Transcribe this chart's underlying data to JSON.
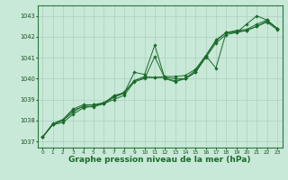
{
  "background_color": "#c8e8d8",
  "plot_bg_color": "#c8e8d8",
  "grid_color": "#a8c8b8",
  "line_color": "#1a6b2a",
  "marker_color": "#1a6b2a",
  "xlabel": "Graphe pression niveau de la mer (hPa)",
  "xlabel_fontsize": 6.5,
  "xlim": [
    -0.5,
    23.5
  ],
  "ylim": [
    1036.7,
    1043.5
  ],
  "yticks": [
    1037,
    1038,
    1039,
    1040,
    1041,
    1042,
    1043
  ],
  "xticks": [
    0,
    1,
    2,
    3,
    4,
    5,
    6,
    7,
    8,
    9,
    10,
    11,
    12,
    13,
    14,
    15,
    16,
    17,
    18,
    19,
    20,
    21,
    22,
    23
  ],
  "series": [
    [
      1037.2,
      1037.8,
      1037.9,
      1038.3,
      1038.6,
      1038.7,
      1038.8,
      1039.2,
      1039.3,
      1040.3,
      1040.2,
      1041.6,
      1040.0,
      1039.9,
      1040.0,
      1040.3,
      1041.1,
      1040.5,
      1042.2,
      1042.2,
      1042.6,
      1043.0,
      1042.8,
      1042.4
    ],
    [
      1037.2,
      1037.8,
      1038.0,
      1038.4,
      1038.7,
      1038.75,
      1038.8,
      1039.1,
      1039.3,
      1039.9,
      1040.1,
      1040.05,
      1040.05,
      1040.0,
      1040.0,
      1040.4,
      1041.05,
      1041.8,
      1042.2,
      1042.25,
      1042.3,
      1042.5,
      1042.75,
      1042.4
    ],
    [
      1037.2,
      1037.85,
      1038.05,
      1038.55,
      1038.75,
      1038.75,
      1038.85,
      1039.15,
      1039.35,
      1039.9,
      1040.05,
      1040.05,
      1040.1,
      1040.1,
      1040.15,
      1040.45,
      1041.1,
      1041.85,
      1042.2,
      1042.3,
      1042.35,
      1042.6,
      1042.8,
      1042.4
    ],
    [
      1037.2,
      1037.8,
      1038.0,
      1038.5,
      1038.65,
      1038.65,
      1038.8,
      1039.0,
      1039.2,
      1039.85,
      1040.0,
      1041.05,
      1040.0,
      1039.85,
      1040.0,
      1040.3,
      1041.0,
      1041.7,
      1042.1,
      1042.2,
      1042.3,
      1042.5,
      1042.7,
      1042.35
    ]
  ]
}
